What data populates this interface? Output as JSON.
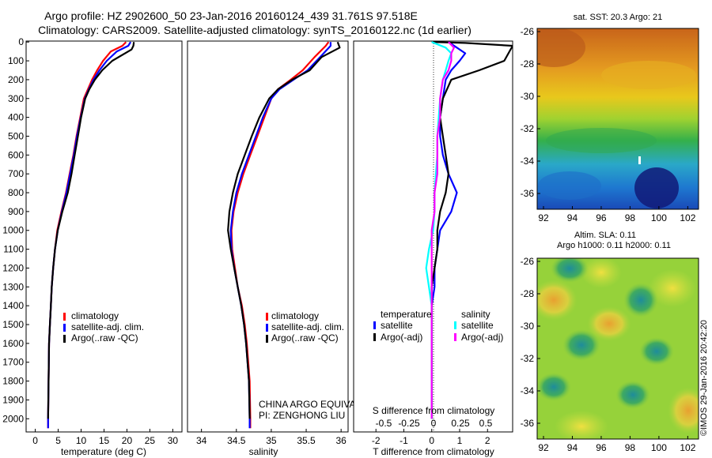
{
  "header": {
    "title_line1": "Argo profile: HZ 2902600_50 23-Jan-2016 20160124_439 31.761S 97.518E",
    "title_line2": "Climatology: CARS2009. Satellite-adjusted climatology: synTS_20160122.nc (1d earlier)"
  },
  "colors": {
    "climatology": "#ff0000",
    "satellite": "#0000ff",
    "argo": "#000000",
    "salinity_satellite": "#00ffff",
    "salinity_argo": "#ff00ff"
  },
  "depth_ticks": [
    "0",
    "100",
    "200",
    "300",
    "400",
    "500",
    "600",
    "700",
    "800",
    "900",
    "1000",
    "1100",
    "1200",
    "1300",
    "1400",
    "1500",
    "1600",
    "1700",
    "1800",
    "1900",
    "2000"
  ],
  "chart_data": [
    {
      "type": "line",
      "id": "temperature",
      "xlabel": "temperature (deg C)",
      "xlim": [
        -2,
        32
      ],
      "ylim": [
        2070,
        -5
      ],
      "xticks": [
        "0",
        "5",
        "10",
        "15",
        "20",
        "25",
        "30"
      ],
      "legend": [
        "climatology",
        "satellite-adj. clim.",
        "Argo(..raw -QC)"
      ],
      "series": [
        {
          "name": "climatology",
          "color_key": "climatology",
          "x": [
            19.8,
            19.0,
            16.5,
            14.8,
            13.5,
            12.4,
            11.5,
            10.6,
            9.8,
            9.0,
            8.3,
            7.5,
            6.7,
            5.7,
            4.8,
            4.3,
            3.9,
            3.6,
            3.4,
            3.2,
            3.0,
            2.9,
            2.8,
            2.8
          ],
          "y": [
            0,
            20,
            50,
            100,
            150,
            200,
            250,
            300,
            400,
            500,
            600,
            700,
            800,
            900,
            1000,
            1100,
            1200,
            1300,
            1400,
            1500,
            1600,
            1800,
            2000,
            2050
          ]
        },
        {
          "name": "satellite-adj. clim.",
          "color_key": "satellite",
          "x": [
            20.8,
            20.3,
            17.8,
            15.6,
            14.0,
            12.7,
            11.7,
            10.8,
            9.9,
            9.1,
            8.4,
            7.6,
            6.8,
            5.8,
            4.9,
            4.3,
            3.9,
            3.6,
            3.4,
            3.2,
            3.0,
            2.9,
            2.8,
            2.8
          ],
          "y": [
            0,
            20,
            50,
            100,
            150,
            200,
            250,
            300,
            400,
            500,
            600,
            700,
            800,
            900,
            1000,
            1100,
            1200,
            1300,
            1400,
            1500,
            1600,
            1800,
            2000,
            2050
          ]
        },
        {
          "name": "Argo(..raw -QC)",
          "color_key": "argo",
          "x": [
            21.5,
            21.4,
            21.0,
            16.8,
            14.6,
            13.0,
            11.8,
            10.9,
            10.0,
            9.3,
            8.6,
            7.9,
            7.1,
            5.9,
            4.9,
            4.3,
            3.9,
            3.6,
            3.4,
            3.2,
            3.0,
            2.9,
            2.8
          ],
          "y": [
            0,
            20,
            40,
            100,
            150,
            200,
            250,
            300,
            400,
            500,
            600,
            700,
            800,
            900,
            1000,
            1100,
            1200,
            1300,
            1400,
            1500,
            1600,
            1800,
            2000
          ]
        }
      ]
    },
    {
      "type": "line",
      "id": "salinity",
      "xlabel": "salinity",
      "xlim": [
        33.8,
        36.1
      ],
      "ylim": [
        2070,
        -5
      ],
      "xticks": [
        "34",
        "34.5",
        "35",
        "35.5",
        "36"
      ],
      "legend": [
        "climatology",
        "satellite-adj. clim.",
        "Argo(..raw -QC)"
      ],
      "series": [
        {
          "name": "climatology",
          "color_key": "climatology",
          "x": [
            35.82,
            35.78,
            35.62,
            35.45,
            35.28,
            35.1,
            35.0,
            34.9,
            34.8,
            34.7,
            34.6,
            34.52,
            34.46,
            34.43,
            34.44,
            34.48,
            34.52,
            34.58,
            34.62,
            34.65,
            34.67,
            34.69,
            34.7,
            34.7
          ],
          "y": [
            0,
            20,
            80,
            150,
            200,
            250,
            300,
            400,
            500,
            600,
            700,
            800,
            900,
            1000,
            1100,
            1200,
            1300,
            1400,
            1500,
            1600,
            1700,
            1800,
            2000,
            2050
          ]
        },
        {
          "name": "satellite-adj. clim.",
          "color_key": "satellite",
          "x": [
            35.85,
            35.85,
            35.7,
            35.52,
            35.32,
            35.12,
            35.0,
            34.88,
            34.78,
            34.68,
            34.58,
            34.5,
            34.45,
            34.42,
            34.43,
            34.47,
            34.52,
            34.57,
            34.61,
            34.64,
            34.66,
            34.68,
            34.69,
            34.69
          ],
          "y": [
            0,
            20,
            80,
            150,
            200,
            250,
            300,
            400,
            500,
            600,
            700,
            800,
            900,
            1000,
            1100,
            1200,
            1300,
            1400,
            1500,
            1600,
            1700,
            1800,
            2000,
            2050
          ]
        },
        {
          "name": "Argo(..raw -QC)",
          "color_key": "argo",
          "x": [
            35.95,
            35.98,
            35.72,
            35.55,
            35.3,
            35.1,
            34.97,
            34.83,
            34.72,
            34.62,
            34.52,
            34.45,
            34.4,
            34.38,
            34.42,
            34.47,
            34.52,
            34.57,
            34.61,
            34.64,
            34.66,
            34.68,
            34.69
          ],
          "y": [
            0,
            30,
            80,
            150,
            200,
            250,
            300,
            400,
            500,
            600,
            700,
            800,
            900,
            1000,
            1100,
            1200,
            1300,
            1400,
            1500,
            1600,
            1700,
            1800,
            2000
          ]
        }
      ]
    },
    {
      "type": "line",
      "id": "difference",
      "xlabel": "T difference from climatology",
      "xlabel_top": "S difference from climatology",
      "xlim": [
        -2.8,
        2.9
      ],
      "ylim": [
        2070,
        -5
      ],
      "xticks": [
        "-2",
        "-1",
        "0",
        "1",
        "2"
      ],
      "xticks_s": [
        "-0.5",
        "-0.25",
        "0",
        "0.25",
        "0.5"
      ],
      "legend_left_title": "temperature",
      "legend_right_title": "salinity",
      "legend_left": [
        "satellite",
        "Argo(-adj)"
      ],
      "legend_right": [
        "satellite",
        "Argo(-adj)"
      ],
      "series": [
        {
          "name": "satellite",
          "color_key": "satellite",
          "x": [
            0.6,
            0.9,
            1.2,
            1.0,
            0.7,
            0.5,
            0.4,
            0.3,
            0.3,
            0.4,
            0.6,
            0.9,
            0.7,
            0.3,
            0.2,
            0.1,
            0.1,
            0.0,
            0.0,
            0.0,
            0.0,
            0.0
          ],
          "y": [
            0,
            30,
            60,
            100,
            150,
            200,
            300,
            400,
            500,
            600,
            700,
            800,
            900,
            1000,
            1100,
            1200,
            1300,
            1400,
            1500,
            1600,
            1800,
            2000
          ]
        },
        {
          "name": "Argo(-adj)",
          "color_key": "argo",
          "x": [
            0.0,
            1.2,
            2.9,
            2.6,
            1.7,
            0.7,
            0.4,
            0.3,
            0.4,
            0.5,
            0.6,
            0.5,
            0.3,
            0.2,
            0.2,
            0.1,
            0.0,
            0.0,
            0.0,
            0.0,
            0.0,
            0.0
          ],
          "y": [
            0,
            5,
            20,
            100,
            150,
            200,
            300,
            400,
            500,
            600,
            700,
            800,
            900,
            1000,
            1100,
            1200,
            1300,
            1400,
            1500,
            1600,
            1800,
            2000
          ]
        },
        {
          "name": "satellite",
          "color_key": "salinity_satellite",
          "x": [
            0.0,
            0.5,
            0.7,
            0.6,
            0.5,
            0.4,
            0.3,
            0.25,
            0.2,
            0.2,
            0.15,
            0.1,
            0.1,
            0.05,
            -0.1,
            -0.2,
            -0.1,
            0.0,
            0.0,
            0.0,
            0.0,
            0.0
          ],
          "y": [
            0,
            30,
            60,
            100,
            150,
            200,
            300,
            400,
            500,
            600,
            700,
            800,
            900,
            1000,
            1100,
            1200,
            1300,
            1400,
            1500,
            1600,
            1800,
            2000
          ]
        },
        {
          "name": "Argo(-adj)",
          "color_key": "salinity_argo",
          "x": [
            0.6,
            0.8,
            0.7,
            0.7,
            0.6,
            0.4,
            0.3,
            0.3,
            0.2,
            0.2,
            0.2,
            0.1,
            0.1,
            0.0,
            0.0,
            0.0,
            0.0,
            0.0,
            0.0,
            0.0,
            0.0,
            0.0
          ],
          "y": [
            0,
            30,
            60,
            100,
            150,
            200,
            300,
            400,
            500,
            600,
            700,
            800,
            900,
            1000,
            1100,
            1200,
            1300,
            1400,
            1500,
            1600,
            1800,
            2000
          ]
        }
      ]
    },
    {
      "type": "heatmap",
      "id": "sst-map",
      "title": "sat. SST: 20.3  Argo: 21",
      "xticks": [
        "92",
        "94",
        "96",
        "98",
        "100",
        "102"
      ],
      "yticks": [
        "-26",
        "-28",
        "-30",
        "-32",
        "-34",
        "-36"
      ]
    },
    {
      "type": "heatmap",
      "id": "sla-map",
      "title_line1": "Altim. SLA: 0.11",
      "title_line2": "Argo h1000: 0.11 h2000: 0.11",
      "xticks": [
        "92",
        "94",
        "96",
        "98",
        "100",
        "102"
      ],
      "yticks": [
        "-26",
        "-28",
        "-30",
        "-32",
        "-34",
        "-36"
      ]
    }
  ],
  "labels": {
    "float_name": "CHINA ARGO EQUIVALENT",
    "pi_name": "PI: ZENGHONG LIU",
    "imos_stamp": "©IMOS 29-Jan-2016 20:42:20"
  }
}
